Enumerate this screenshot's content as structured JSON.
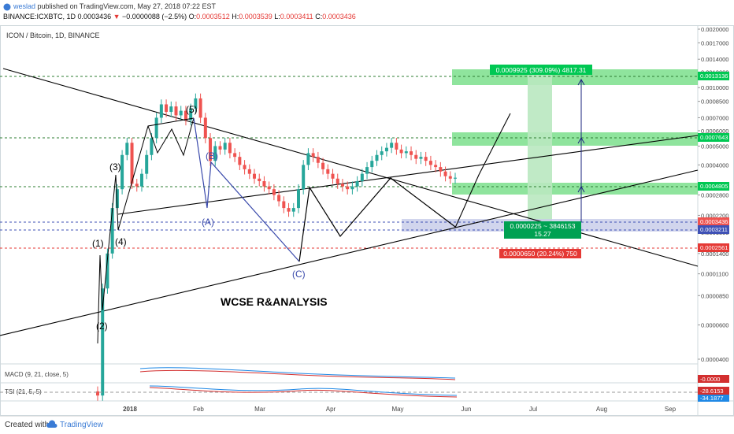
{
  "header": {
    "user": "weslad",
    "published_text": "published on TradingView.com, May 27, 2018 07:22 EST",
    "symbol": "BINANCE:ICXBTC, 1D",
    "last": "0.0003436",
    "arrow": "▼",
    "change": "−0.0000088 (−2.5%)",
    "open_label": "O:",
    "open": "0.0003512",
    "high_label": "H:",
    "high": "0.0003539",
    "low_label": "L:",
    "low": "0.0003411",
    "close_label": "C:",
    "close": "0.0003436"
  },
  "chart_title": "ICON / Bitcoin, 1D, BINANCE",
  "footer": {
    "created_with": "Created with",
    "brand": "TradingView"
  },
  "colors": {
    "up": "#26a69a",
    "down": "#ef5350",
    "wave_black": "#000000",
    "wave_blue": "#3949ab",
    "target_green": "#00c853",
    "zone_blue": "#3f51b5",
    "stop_red": "#e53935"
  },
  "chart_data": {
    "type": "candlestick",
    "y_scale": "log",
    "price_ticks": [
      "0.0020000",
      "0.0017000",
      "0.0014000",
      "0.0012000",
      "0.0010000",
      "0.0008500",
      "0.0007000",
      "0.0006000",
      "0.0005000",
      "0.0004000",
      "0.0002800",
      "0.0002200",
      "0.0001800",
      "0.0001400",
      "0.0001100",
      "0.0000850",
      "0.0000600",
      "0.0000400"
    ],
    "time_ticks": [
      "2018",
      "Feb",
      "Mar",
      "Apr",
      "May",
      "Jun",
      "Jul",
      "Aug",
      "Sep"
    ],
    "price_levels": [
      {
        "value": "0.0013136",
        "style": "green-dashed"
      },
      {
        "value": "0.0007643",
        "style": "green-dashed"
      },
      {
        "value": "0.0004805",
        "style": "green-dashed"
      },
      {
        "value": "0.0003211",
        "style": "blue-dashed"
      },
      {
        "value": "0.0002561",
        "style": "red-dashed"
      }
    ],
    "price_labels": [
      "0.0003436",
      "0.0003436"
    ],
    "wave_labels": [
      "(1)",
      "(2)",
      "(3)",
      "(4)",
      "(5)",
      "(A)",
      "(B)",
      "(C)"
    ],
    "annotations": {
      "watermark": "WCSE R&ANALYSIS",
      "target": "0.0009925 (309.09%) 4817.31",
      "risk_line1": "0.0000225 ~ 3846153",
      "risk_line2": "15.27",
      "stop": "0.0000650 (20.24%) 750"
    },
    "series_note": "Daily candles from mid-Dec 2017 to late May 2018",
    "candles_close": [
      2.6e-05,
      9.25e-05,
      0.00014,
      0.00024,
      0.0003,
      0.00045,
      0.00052,
      0.00032,
      0.00031,
      0.00036,
      0.00045,
      0.00055,
      0.0007,
      0.00082,
      0.00075,
      0.0008,
      0.00072,
      0.00076,
      0.00068,
      0.00078,
      0.00088,
      0.0007,
      0.00055,
      0.00042,
      0.0005,
      0.00048,
      0.00052,
      0.00046,
      0.00044,
      0.0004,
      0.00038,
      0.00036,
      0.00034,
      0.00033,
      0.00031,
      0.0003,
      0.00028,
      0.00026,
      0.00024,
      0.00023,
      0.00024,
      0.0003,
      0.0004,
      0.00046,
      0.00044,
      0.00041,
      0.00038,
      0.00036,
      0.00034,
      0.00032,
      0.00031,
      0.0003,
      0.00031,
      0.00033,
      0.00036,
      0.00039,
      0.00042,
      0.00045,
      0.00047,
      0.00049,
      0.00052,
      0.00048,
      0.00046,
      0.00047,
      0.00045,
      0.00043,
      0.00044,
      0.00042,
      0.0004,
      0.00039,
      0.00037,
      0.00035,
      0.00034,
      0.0003436
    ],
    "indicators": [
      {
        "name": "MACD (9, 21, close, 5)",
        "value": "-0.0000"
      },
      {
        "name": "TSI (21, 5, 5)",
        "values": [
          "-28.6153",
          "-34.1877"
        ]
      }
    ]
  }
}
